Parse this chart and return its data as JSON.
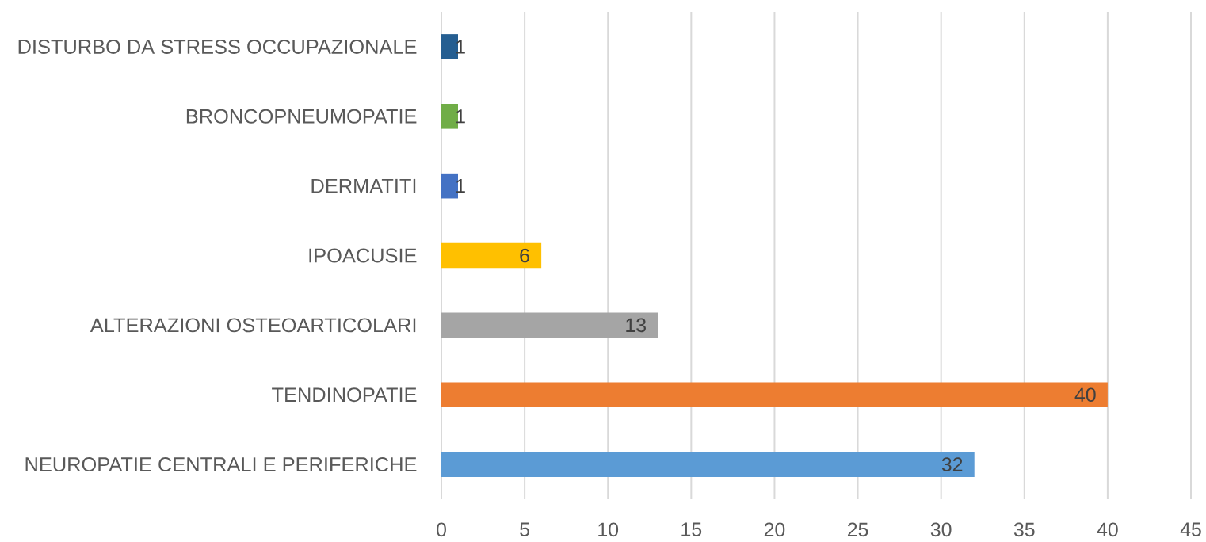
{
  "chart_data": {
    "type": "bar",
    "orientation": "horizontal",
    "categories": [
      "DISTURBO DA STRESS OCCUPAZIONALE",
      "BRONCOPNEUMOPATIE",
      "DERMATITI",
      "IPOACUSIE",
      "ALTERAZIONI OSTEOARTICOLARI",
      "TENDINOPATIE",
      "NEUROPATIE CENTRALI E PERIFERICHE"
    ],
    "values": [
      1,
      1,
      1,
      6,
      13,
      40,
      32
    ],
    "colors": [
      "#255e91",
      "#70ad47",
      "#4472c4",
      "#ffc000",
      "#a5a5a5",
      "#ed7d31",
      "#5b9bd5"
    ],
    "xlim": [
      0,
      45
    ],
    "xticks": [
      0,
      5,
      10,
      15,
      20,
      25,
      30,
      35,
      40,
      45
    ],
    "grid": "x",
    "data_labels": true
  }
}
